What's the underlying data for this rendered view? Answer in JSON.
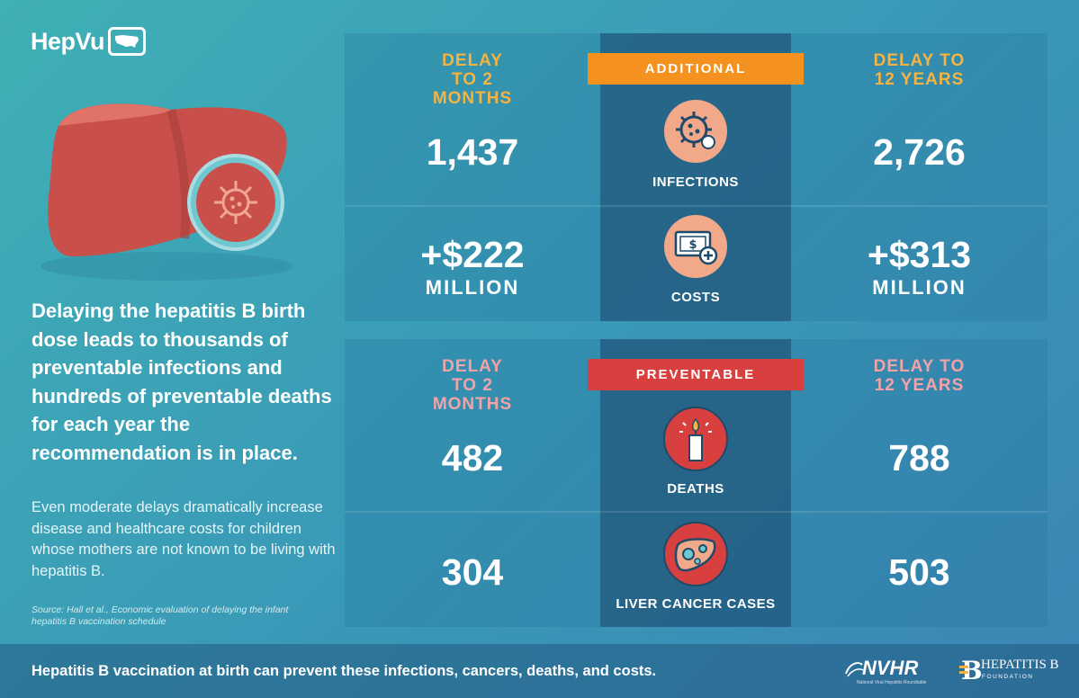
{
  "brand": {
    "name": "HepVu",
    "badge_icon": "usa-map-icon"
  },
  "intro": {
    "headline": "Delaying the hepatitis B birth dose leads to thousands of preventable infections and hundreds of preventable deaths for each year the recommendation is in place.",
    "body": "Even moderate delays dramatically increase disease and healthcare costs for children whose mothers are not known to be living with hepatitis B.",
    "source": "Source: Hall et al., Economic evaluation of delaying the infant hepatitis B vaccination schedule"
  },
  "additional": {
    "banner": "ADDITIONAL",
    "left_header": "DELAY TO 2 MONTHS",
    "right_header": "DELAY TO 12 YEARS",
    "rows": [
      {
        "label": "INFECTIONS",
        "icon": "virus-icon",
        "left": "1,437",
        "right": "2,726",
        "unit": ""
      },
      {
        "label": "COSTS",
        "icon": "money-icon",
        "left": "+$222",
        "right": "+$313",
        "unit": "MILLION"
      }
    ]
  },
  "preventable": {
    "banner": "PREVENTABLE",
    "left_header": "DELAY TO 2 MONTHS",
    "right_header": "DELAY TO 12 YEARS",
    "rows": [
      {
        "label": "DEATHS",
        "icon": "candle-icon",
        "left": "482",
        "right": "788"
      },
      {
        "label": "LIVER CANCER CASES",
        "icon": "liver-cancer-icon",
        "left": "304",
        "right": "503"
      }
    ]
  },
  "footer": {
    "text": "Hepatitis B vaccination at birth can prevent these infections, cancers, deaths, and costs.",
    "nvhr": "NVHR",
    "nvhr_sub": "National Viral Hepatitis Roundtable",
    "hbf_title": "HEPATITIS B",
    "hbf_sub": "FOUNDATION"
  },
  "colors": {
    "orange": "#f5911e",
    "gold": "#f5b342",
    "red": "#d8403f",
    "pink": "#f3a3a8",
    "liver": "#c9504a",
    "icon_bg": "#f2a98a"
  }
}
